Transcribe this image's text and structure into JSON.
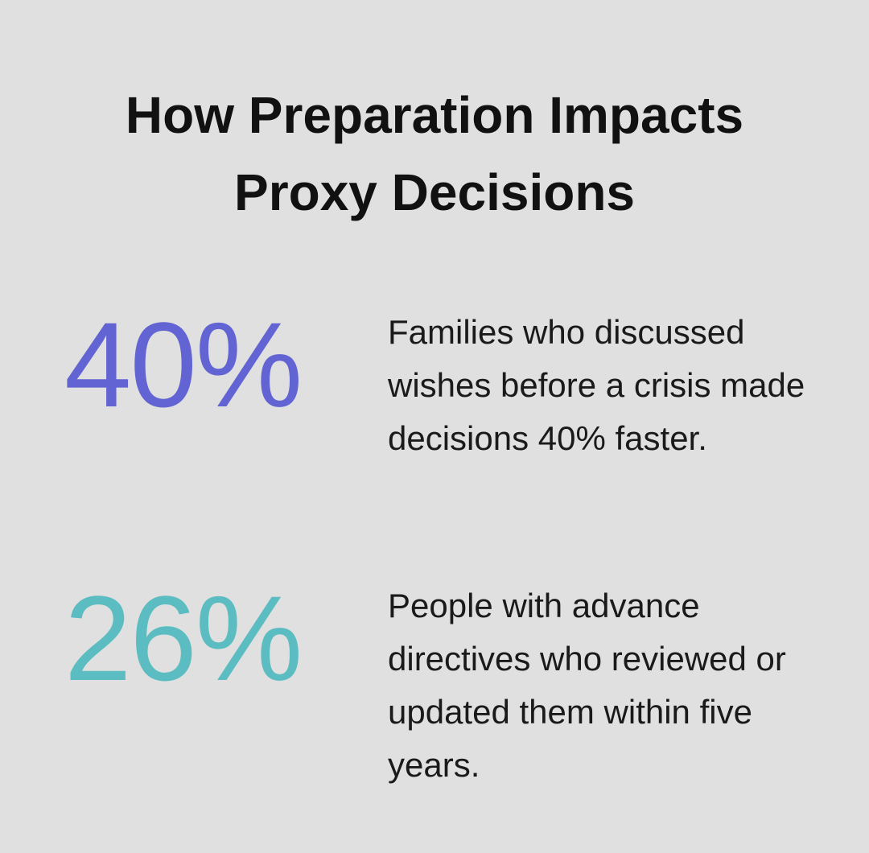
{
  "title": "How Preparation Impacts Proxy Decisions",
  "stats": [
    {
      "value": "40%",
      "description": "Families who discussed wishes before a crisis made decisions 40% faster.",
      "color": "#6264d4"
    },
    {
      "value": "26%",
      "description": "People with advance directives who reviewed or updated them within five years.",
      "color": "#5bbdc1"
    }
  ]
}
